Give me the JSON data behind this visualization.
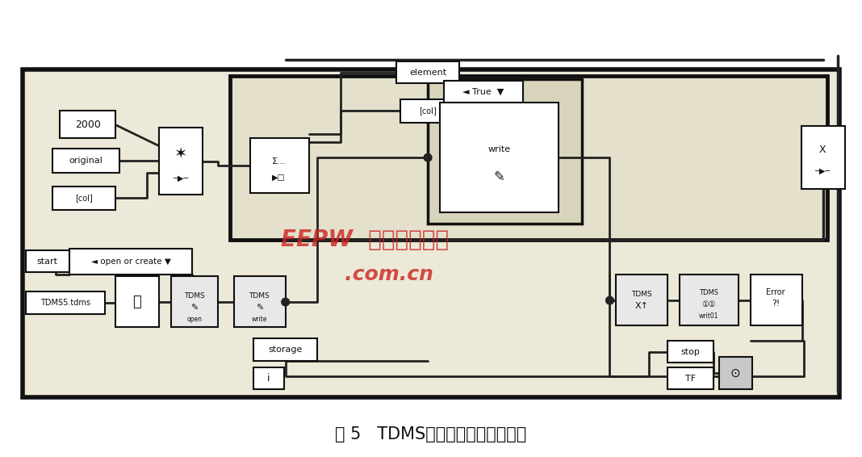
{
  "title": "图 5   TDMS文件写操作程序示意图",
  "title_fontsize": 15,
  "bg_color": "#f0ede0",
  "wire_color": "#222222",
  "box_edge": "#111111",
  "watermark_line1": "EEPW  电子疯品世界",
  "watermark_line2": "       .com.cn",
  "watermark_color": "#cc2222"
}
